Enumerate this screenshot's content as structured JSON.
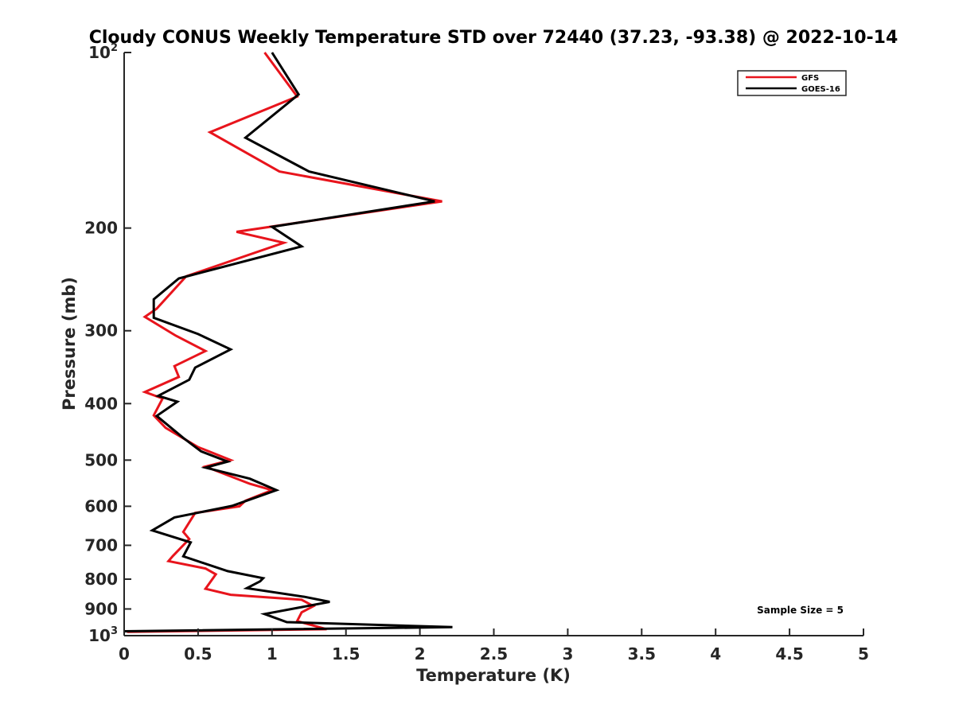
{
  "chart_data": {
    "type": "line",
    "title": "Cloudy CONUS Weekly Temperature STD over 72440 (37.23, -93.38) @ 2022-10-14",
    "xlabel": "Temperature (K)",
    "ylabel": "Pressure (mb)",
    "xlim": [
      0,
      5
    ],
    "ylim": [
      100,
      1000
    ],
    "y_scale": "log",
    "y_reversed": true,
    "grid": false,
    "legend_position": "top-right",
    "x_ticks": [
      {
        "value": 0,
        "label": "0"
      },
      {
        "value": 0.5,
        "label": "0.5"
      },
      {
        "value": 1,
        "label": "1"
      },
      {
        "value": 1.5,
        "label": "1.5"
      },
      {
        "value": 2,
        "label": "2"
      },
      {
        "value": 2.5,
        "label": "2.5"
      },
      {
        "value": 3,
        "label": "3"
      },
      {
        "value": 3.5,
        "label": "3.5"
      },
      {
        "value": 4,
        "label": "4"
      },
      {
        "value": 4.5,
        "label": "4.5"
      },
      {
        "value": 5,
        "label": "5"
      }
    ],
    "y_ticks": [
      {
        "value": 100,
        "base": "10",
        "exp": "2",
        "label": ""
      },
      {
        "value": 200,
        "label": "200"
      },
      {
        "value": 300,
        "label": "300"
      },
      {
        "value": 400,
        "label": "400"
      },
      {
        "value": 500,
        "label": "500"
      },
      {
        "value": 600,
        "label": "600"
      },
      {
        "value": 700,
        "label": "700"
      },
      {
        "value": 800,
        "label": "800"
      },
      {
        "value": 900,
        "label": "900"
      },
      {
        "value": 1000,
        "base": "10",
        "exp": "3",
        "label": ""
      }
    ],
    "series": [
      {
        "name": "GFS",
        "color": "#e8141c",
        "points": [
          [
            0.95,
            100
          ],
          [
            1.17,
            119
          ],
          [
            0.58,
            137
          ],
          [
            1.05,
            160
          ],
          [
            2.15,
            180
          ],
          [
            0.76,
            203
          ],
          [
            1.08,
            212
          ],
          [
            0.42,
            242
          ],
          [
            0.22,
            275
          ],
          [
            0.14,
            284
          ],
          [
            0.35,
            306
          ],
          [
            0.55,
            325
          ],
          [
            0.34,
            345
          ],
          [
            0.37,
            360
          ],
          [
            0.14,
            382
          ],
          [
            0.26,
            392
          ],
          [
            0.2,
            419
          ],
          [
            0.28,
            440
          ],
          [
            0.5,
            475
          ],
          [
            0.72,
            500
          ],
          [
            0.55,
            513
          ],
          [
            0.85,
            549
          ],
          [
            1.0,
            563
          ],
          [
            0.82,
            587
          ],
          [
            0.78,
            600
          ],
          [
            0.48,
            616
          ],
          [
            0.4,
            664
          ],
          [
            0.44,
            683
          ],
          [
            0.33,
            730
          ],
          [
            0.3,
            745
          ],
          [
            0.55,
            767
          ],
          [
            0.62,
            785
          ],
          [
            0.55,
            831
          ],
          [
            0.72,
            851
          ],
          [
            1.2,
            868
          ],
          [
            1.28,
            890
          ],
          [
            1.2,
            912
          ],
          [
            1.17,
            944
          ],
          [
            1.37,
            975
          ],
          [
            0.02,
            985
          ]
        ]
      },
      {
        "name": "GOES-16",
        "color": "#000000",
        "points": [
          [
            1.0,
            100
          ],
          [
            1.18,
            118
          ],
          [
            0.82,
            140
          ],
          [
            1.25,
            160
          ],
          [
            2.1,
            180
          ],
          [
            1.0,
            199
          ],
          [
            1.2,
            215
          ],
          [
            0.37,
            244
          ],
          [
            0.2,
            265
          ],
          [
            0.2,
            285
          ],
          [
            0.5,
            304
          ],
          [
            0.72,
            323
          ],
          [
            0.48,
            347
          ],
          [
            0.44,
            364
          ],
          [
            0.23,
            388
          ],
          [
            0.36,
            397
          ],
          [
            0.22,
            420
          ],
          [
            0.4,
            458
          ],
          [
            0.52,
            483
          ],
          [
            0.7,
            503
          ],
          [
            0.55,
            515
          ],
          [
            0.85,
            538
          ],
          [
            1.03,
            563
          ],
          [
            0.73,
            599
          ],
          [
            0.34,
            627
          ],
          [
            0.19,
            660
          ],
          [
            0.45,
            692
          ],
          [
            0.4,
            731
          ],
          [
            0.7,
            775
          ],
          [
            0.94,
            797
          ],
          [
            0.92,
            807
          ],
          [
            0.83,
            829
          ],
          [
            1.22,
            858
          ],
          [
            1.39,
            875
          ],
          [
            0.95,
            918
          ],
          [
            1.1,
            948
          ],
          [
            2.22,
            967
          ],
          [
            0.0,
            983
          ]
        ]
      }
    ],
    "annotations": [
      {
        "text": "Sample Size = 5"
      }
    ]
  }
}
